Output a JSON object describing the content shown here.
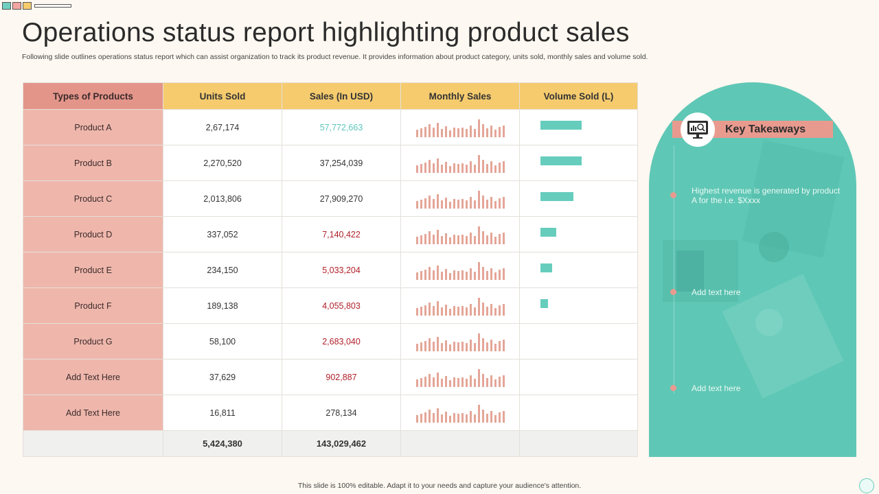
{
  "title": "Operations status report highlighting product sales",
  "subtitle": "Following slide outlines operations status report which can assist organization to track its product revenue. It provides information about product category, units sold, monthly sales and volume sold.",
  "deco_colors": [
    "#6fcfc0",
    "#f2a5a0",
    "#f5cb6e"
  ],
  "table": {
    "headers": [
      "Types of Products",
      "Units Sold",
      "Sales (In USD)",
      "Monthly Sales",
      "Volume Sold (L)"
    ],
    "rows": [
      {
        "product": "Product A",
        "units": "2,67,174",
        "sales": "57,772,663",
        "sales_color": "teal",
        "volume_fraction": 0.68
      },
      {
        "product": "Product B",
        "units": "2,270,520",
        "sales": "37,254,039",
        "sales_color": "dark",
        "volume_fraction": 0.68
      },
      {
        "product": "Product C",
        "units": "2,013,806",
        "sales": "27,909,270",
        "sales_color": "dark",
        "volume_fraction": 0.54
      },
      {
        "product": "Product D",
        "units": "337,052",
        "sales": "7,140,422",
        "sales_color": "red",
        "volume_fraction": 0.26
      },
      {
        "product": "Product E",
        "units": "234,150",
        "sales": "5,033,204",
        "sales_color": "red",
        "volume_fraction": 0.19
      },
      {
        "product": "Product F",
        "units": "189,138",
        "sales": "4,055,803",
        "sales_color": "red",
        "volume_fraction": 0.13
      },
      {
        "product": "Product G",
        "units": "58,100",
        "sales": "2,683,040",
        "sales_color": "red",
        "volume_fraction": 0
      },
      {
        "product": "Add Text Here",
        "units": "37,629",
        "sales": "902,887",
        "sales_color": "red",
        "volume_fraction": 0
      },
      {
        "product": "Add Text Here",
        "units": "16,811",
        "sales": "278,134",
        "sales_color": "dark",
        "volume_fraction": 0
      }
    ],
    "totals": {
      "units": "5,424,380",
      "sales": "143,029,462"
    },
    "monthly_sales_sparkline": [
      0.25,
      0.35,
      0.45,
      0.65,
      0.4,
      0.75,
      0.3,
      0.5,
      0.2,
      0.4,
      0.35,
      0.4,
      0.3,
      0.55,
      0.3,
      1.0,
      0.65,
      0.35,
      0.55,
      0.25,
      0.45,
      0.55
    ]
  },
  "takeaways": {
    "heading": "Key Takeaways",
    "items": [
      "Highest revenue is generated by product A for the i.e. $Xxxx",
      "Add text here",
      "Add text here"
    ]
  },
  "footer": "This slide is 100% editable. Adapt it to your needs and capture your audience's attention."
}
